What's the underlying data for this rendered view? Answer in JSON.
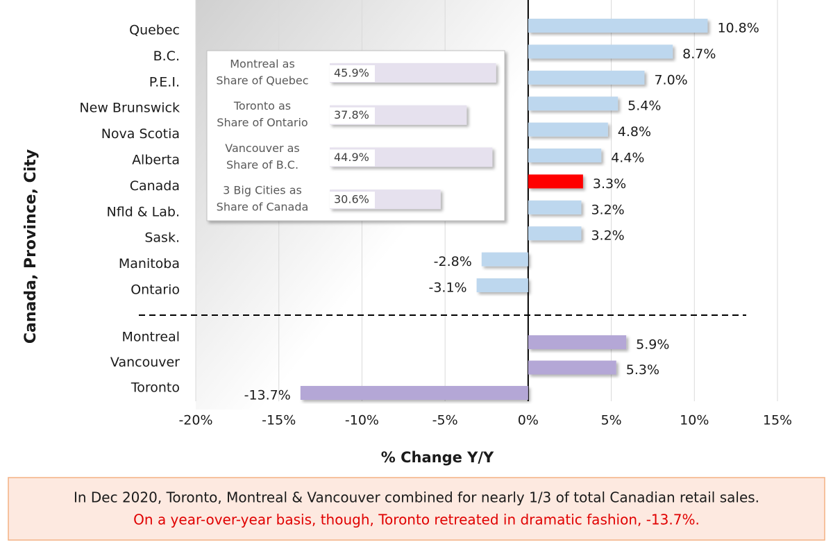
{
  "chart_data": [
    {
      "type": "bar",
      "orientation": "horizontal",
      "y_axis_title": "Canada, Province, City",
      "x_axis_title": "% Change Y/Y",
      "categories": [
        "Quebec",
        "B.C.",
        "P.E.I.",
        "New Brunswick",
        "Nova Scotia",
        "Alberta",
        "Canada",
        "Nfld & Lab.",
        "Sask.",
        "Manitoba",
        "Ontario",
        "Montreal",
        "Vancouver",
        "Toronto"
      ],
      "values": [
        10.8,
        8.7,
        7.0,
        5.4,
        4.8,
        4.4,
        3.3,
        3.2,
        3.2,
        -2.8,
        -3.1,
        5.9,
        5.3,
        -13.7
      ],
      "value_labels": [
        "10.8%",
        "8.7%",
        "7.0%",
        "5.4%",
        "4.8%",
        "4.4%",
        "3.3%",
        "3.2%",
        "3.2%",
        "-2.8%",
        "-3.1%",
        "5.9%",
        "5.3%",
        "-13.7%"
      ],
      "colors": [
        "#bdd7ee",
        "#bdd7ee",
        "#bdd7ee",
        "#bdd7ee",
        "#bdd7ee",
        "#bdd7ee",
        "#ff0000",
        "#bdd7ee",
        "#bdd7ee",
        "#bdd7ee",
        "#bdd7ee",
        "#b4a7d6",
        "#b4a7d6",
        "#b4a7d6"
      ],
      "xlim": [
        -20,
        15
      ],
      "xticks": [
        {
          "value": -20,
          "label": "-20%"
        },
        {
          "value": -15,
          "label": "-15%"
        },
        {
          "value": -10,
          "label": "-10%"
        },
        {
          "value": -5,
          "label": "-5%"
        },
        {
          "value": 0,
          "label": "0%"
        },
        {
          "value": 5,
          "label": "5%"
        },
        {
          "value": 10,
          "label": "10%"
        },
        {
          "value": 15,
          "label": "15%"
        }
      ],
      "grid": true
    },
    {
      "type": "bar",
      "orientation": "horizontal",
      "categories": [
        [
          "Montreal as",
          "Share of Quebec"
        ],
        [
          "Toronto as",
          "Share of Ontario"
        ],
        [
          "Vancouver as",
          "Share of B.C."
        ],
        [
          "3 Big Cities as",
          "Share of Canada"
        ]
      ],
      "values": [
        45.9,
        37.8,
        44.9,
        30.6
      ],
      "value_labels": [
        "45.9%",
        "37.8%",
        "44.9%",
        "30.6%"
      ],
      "color": "#e6e1ee"
    }
  ],
  "caption": [
    "In Dec 2020, Toronto, Montreal & Vancouver combined for nearly 1/3 of total Canadian retail sales.",
    "On a year-over-year basis, though, Toronto retreated in dramatic fashion, -13.7%."
  ]
}
